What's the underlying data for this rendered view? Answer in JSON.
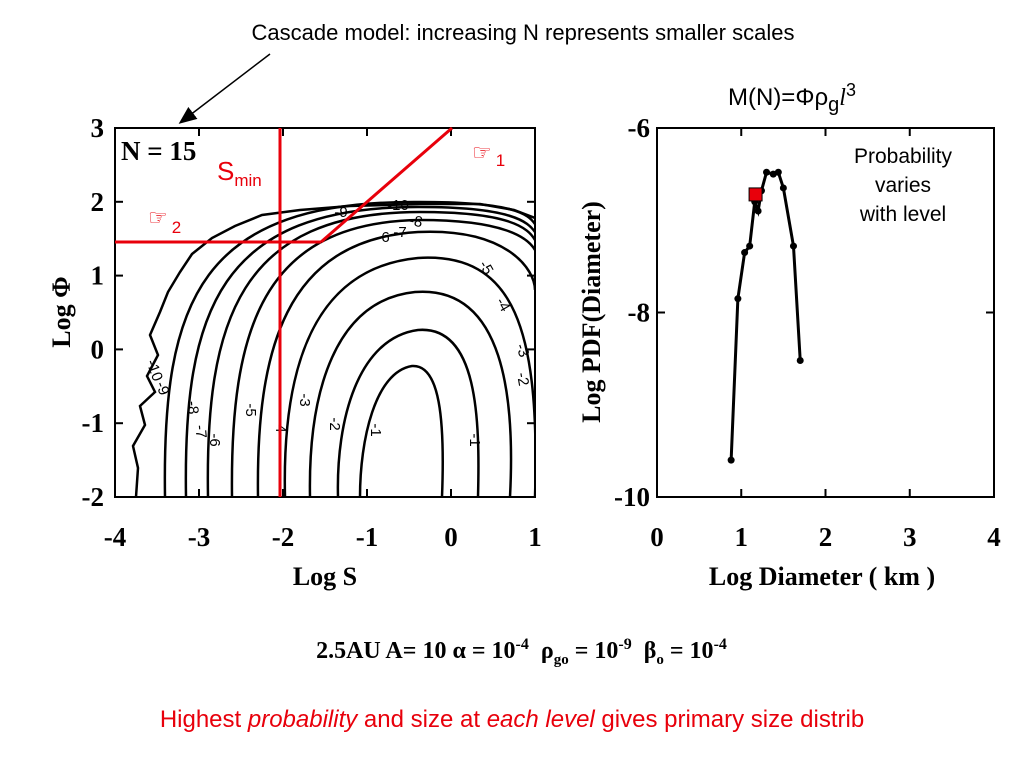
{
  "header": {
    "title": "Cascade model: increasing N represents smaller scales"
  },
  "equation": {
    "lhs": "M(N)=",
    "phi": "Φ",
    "rho": "ρ",
    "rho_sub": "g",
    "l": "l",
    "l_sup": "3"
  },
  "note": {
    "line1": "Probability",
    "line2": "varies",
    "line3": "with level"
  },
  "params": {
    "p1": "2.5AU  A= 10  ",
    "alpha": "α = 10",
    "alpha_exp": "-4",
    "rho": "ρ",
    "rho_sub": "go",
    "rho_eq": " = 10",
    "rho_exp": "-9",
    "beta": "β",
    "beta_sub": "o",
    "beta_eq": " = 10",
    "beta_exp": "-4"
  },
  "caption": {
    "a": "Highest ",
    "b": "probability",
    "c": " and size at ",
    "d": "each level",
    "e": " gives primary size distrib"
  },
  "colors": {
    "annotation_red": "#e8000b",
    "contour": "#000000"
  },
  "chart_data": [
    {
      "type": "contour",
      "xlabel": "Log S",
      "ylabel": "Log Φ",
      "xlim": [
        -4,
        1
      ],
      "ylim": [
        -2.0,
        3.0
      ],
      "x_ticks": [
        "-4",
        "-3",
        "-2",
        "-1",
        "0",
        "1"
      ],
      "y_ticks": [
        "3",
        "2",
        "1",
        "0",
        "-1",
        "-2"
      ],
      "level_label": "N = 15",
      "contour_labels": [
        "-10",
        "-9",
        "-8",
        "-7",
        "-6",
        "-5",
        "-4",
        "-3",
        "-2",
        "-1",
        "-10",
        "-9",
        "-8",
        "-7",
        "-6",
        "-5",
        "-4",
        "-3",
        "-2",
        "-1"
      ],
      "annotations": {
        "smin": "S",
        "smin_sub": "min",
        "hand1_glyph": "☞",
        "hand1_sub": "1",
        "hand2_glyph": "☞",
        "hand2_sub": "2"
      }
    },
    {
      "type": "line",
      "xlabel": "Log Diameter ( km )",
      "ylabel": "Log PDF(Diameter)",
      "xlim": [
        0,
        4
      ],
      "ylim": [
        -10,
        -6
      ],
      "x_ticks": [
        "0",
        "1",
        "2",
        "3",
        "4"
      ],
      "y_ticks": [
        "-6",
        "-8",
        "-10"
      ],
      "points": [
        {
          "x": 0.88,
          "y": -9.6
        },
        {
          "x": 0.96,
          "y": -7.85
        },
        {
          "x": 1.04,
          "y": -7.35
        },
        {
          "x": 1.1,
          "y": -7.28
        },
        {
          "x": 1.16,
          "y": -6.8
        },
        {
          "x": 1.2,
          "y": -6.9
        },
        {
          "x": 1.24,
          "y": -6.68
        },
        {
          "x": 1.3,
          "y": -6.48
        },
        {
          "x": 1.38,
          "y": -6.5
        },
        {
          "x": 1.44,
          "y": -6.48
        },
        {
          "x": 1.5,
          "y": -6.65
        },
        {
          "x": 1.62,
          "y": -7.28
        },
        {
          "x": 1.7,
          "y": -8.52
        }
      ],
      "highlight": {
        "x": 1.17,
        "y": -6.72
      }
    }
  ]
}
